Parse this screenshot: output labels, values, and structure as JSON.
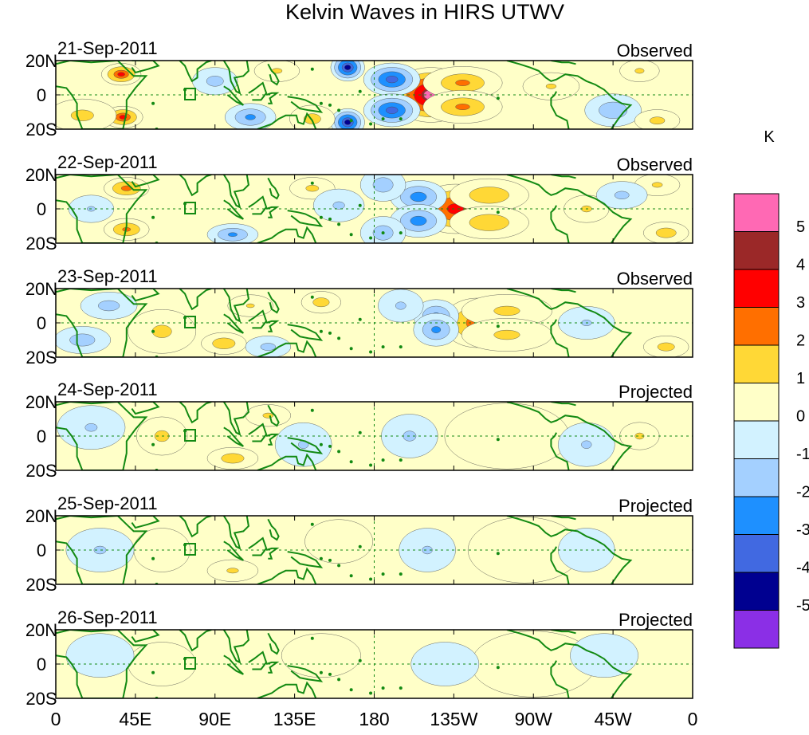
{
  "chart_data": {
    "type": "heatmap",
    "title": "Kelvin Waves in HIRS UTWV",
    "colorbar": {
      "unit": "K",
      "ticks": [
        "5",
        "4",
        "3",
        "2",
        "1",
        "0",
        "-1",
        "-2",
        "-3",
        "-4",
        "-5"
      ],
      "colors_top_to_bottom": [
        "#ff69b4",
        "#9b2828",
        "#ff0000",
        "#ff6f00",
        "#ffd836",
        "#ffffc8",
        "#d2f2ff",
        "#a4d0ff",
        "#1e90ff",
        "#4169e1",
        "#000090",
        "#8b2fe6"
      ]
    },
    "x_ticks": [
      "0",
      "45E",
      "90E",
      "135E",
      "180",
      "135W",
      "90W",
      "45W",
      "0"
    ],
    "x_tick_lon": [
      0,
      45,
      90,
      135,
      180,
      225,
      270,
      315,
      360
    ],
    "y_ticks": [
      "20N",
      "0",
      "20S"
    ],
    "y_tick_lat": [
      20,
      0,
      -20
    ],
    "xlim": [
      0,
      360
    ],
    "ylim": [
      -20,
      20
    ],
    "panels": [
      {
        "date": "21-Sep-2011",
        "label": "Observed",
        "blobs": [
          {
            "lon": 212,
            "lat": 0,
            "v": 5.2,
            "sx": 14,
            "sy": 10
          },
          {
            "lon": 230,
            "lat": 7,
            "v": 2.2,
            "sx": 14,
            "sy": 6
          },
          {
            "lon": 230,
            "lat": -7,
            "v": 2.2,
            "sx": 14,
            "sy": 6
          },
          {
            "lon": 190,
            "lat": 9,
            "v": -3.8,
            "sx": 10,
            "sy": 6
          },
          {
            "lon": 190,
            "lat": -9,
            "v": -3.8,
            "sx": 10,
            "sy": 6
          },
          {
            "lon": 165,
            "lat": 16,
            "v": -4.5,
            "sx": 6,
            "sy": 5
          },
          {
            "lon": 165,
            "lat": -16,
            "v": -4.5,
            "sx": 6,
            "sy": 5
          },
          {
            "lon": 37,
            "lat": 12,
            "v": 3.2,
            "sx": 7,
            "sy": 4
          },
          {
            "lon": 38,
            "lat": -13,
            "v": 3.2,
            "sx": 7,
            "sy": 4
          },
          {
            "lon": 15,
            "lat": -12,
            "v": 1.5,
            "sx": 12,
            "sy": 6
          },
          {
            "lon": 110,
            "lat": -13,
            "v": -2.5,
            "sx": 9,
            "sy": 5
          },
          {
            "lon": 90,
            "lat": 8,
            "v": -1.6,
            "sx": 8,
            "sy": 5
          },
          {
            "lon": 145,
            "lat": -14,
            "v": 1.6,
            "sx": 8,
            "sy": 5
          },
          {
            "lon": 125,
            "lat": 14,
            "v": 1.3,
            "sx": 8,
            "sy": 4
          },
          {
            "lon": 315,
            "lat": -9,
            "v": -2.0,
            "sx": 10,
            "sy": 6
          },
          {
            "lon": 340,
            "lat": -15,
            "v": 1.5,
            "sx": 8,
            "sy": 4
          },
          {
            "lon": 330,
            "lat": 14,
            "v": 1.3,
            "sx": 7,
            "sy": 4
          },
          {
            "lon": 280,
            "lat": 5,
            "v": 1.1,
            "sx": 10,
            "sy": 5
          }
        ]
      },
      {
        "date": "22-Sep-2011",
        "label": "Observed",
        "blobs": [
          {
            "lon": 226,
            "lat": 0,
            "v": 3.8,
            "sx": 14,
            "sy": 9
          },
          {
            "lon": 245,
            "lat": 8,
            "v": 2.0,
            "sx": 14,
            "sy": 6
          },
          {
            "lon": 245,
            "lat": -8,
            "v": 2.0,
            "sx": 14,
            "sy": 6
          },
          {
            "lon": 205,
            "lat": 7,
            "v": -2.8,
            "sx": 10,
            "sy": 6
          },
          {
            "lon": 205,
            "lat": -7,
            "v": -2.8,
            "sx": 10,
            "sy": 6
          },
          {
            "lon": 185,
            "lat": 14,
            "v": -1.8,
            "sx": 8,
            "sy": 6
          },
          {
            "lon": 185,
            "lat": -14,
            "v": -1.8,
            "sx": 8,
            "sy": 6
          },
          {
            "lon": 40,
            "lat": 12,
            "v": 2.6,
            "sx": 8,
            "sy": 4
          },
          {
            "lon": 40,
            "lat": -12,
            "v": 2.4,
            "sx": 8,
            "sy": 4
          },
          {
            "lon": 100,
            "lat": -15,
            "v": -2.4,
            "sx": 9,
            "sy": 4
          },
          {
            "lon": 145,
            "lat": 12,
            "v": 1.4,
            "sx": 8,
            "sy": 4
          },
          {
            "lon": 160,
            "lat": 2,
            "v": -1.3,
            "sx": 9,
            "sy": 6
          },
          {
            "lon": 20,
            "lat": 0,
            "v": -1.1,
            "sx": 8,
            "sy": 5
          },
          {
            "lon": 300,
            "lat": 0,
            "v": 1.3,
            "sx": 8,
            "sy": 5
          },
          {
            "lon": 345,
            "lat": -14,
            "v": 1.8,
            "sx": 8,
            "sy": 4
          },
          {
            "lon": 340,
            "lat": 14,
            "v": 1.3,
            "sx": 8,
            "sy": 4
          },
          {
            "lon": 320,
            "lat": 8,
            "v": -1.4,
            "sx": 9,
            "sy": 5
          }
        ]
      },
      {
        "date": "23-Sep-2011",
        "label": "Observed",
        "blobs": [
          {
            "lon": 238,
            "lat": 0,
            "v": 2.9,
            "sx": 12,
            "sy": 9
          },
          {
            "lon": 255,
            "lat": 7,
            "v": 1.4,
            "sx": 16,
            "sy": 6
          },
          {
            "lon": 255,
            "lat": -7,
            "v": 1.4,
            "sx": 16,
            "sy": 6
          },
          {
            "lon": 215,
            "lat": 4,
            "v": -2.5,
            "sx": 8,
            "sy": 6
          },
          {
            "lon": 215,
            "lat": -4,
            "v": -2.5,
            "sx": 8,
            "sy": 6
          },
          {
            "lon": 195,
            "lat": 10,
            "v": -1.3,
            "sx": 8,
            "sy": 6
          },
          {
            "lon": 60,
            "lat": -5,
            "v": 1.4,
            "sx": 12,
            "sy": 8
          },
          {
            "lon": 95,
            "lat": -12,
            "v": 2.0,
            "sx": 8,
            "sy": 4
          },
          {
            "lon": 150,
            "lat": 12,
            "v": 1.7,
            "sx": 7,
            "sy": 4
          },
          {
            "lon": 30,
            "lat": 10,
            "v": -1.6,
            "sx": 10,
            "sy": 5
          },
          {
            "lon": 15,
            "lat": -10,
            "v": -1.8,
            "sx": 10,
            "sy": 5
          },
          {
            "lon": 110,
            "lat": 10,
            "v": 1.2,
            "sx": 8,
            "sy": 4
          },
          {
            "lon": 120,
            "lat": -14,
            "v": -1.5,
            "sx": 8,
            "sy": 4
          },
          {
            "lon": 300,
            "lat": 0,
            "v": -1.2,
            "sx": 10,
            "sy": 6
          },
          {
            "lon": 345,
            "lat": -14,
            "v": 1.6,
            "sx": 8,
            "sy": 4
          }
        ]
      },
      {
        "date": "24-Sep-2011",
        "label": "Projected",
        "blobs": [
          {
            "lon": 248,
            "lat": 0,
            "v": 2.3,
            "sx": 11,
            "sy": 8
          },
          {
            "lon": 255,
            "lat": 0,
            "v": 0.8,
            "sx": 22,
            "sy": 12
          },
          {
            "lon": 200,
            "lat": 0,
            "v": -1.3,
            "sx": 10,
            "sy": 8
          },
          {
            "lon": 60,
            "lat": 0,
            "v": 1.4,
            "sx": 9,
            "sy": 7
          },
          {
            "lon": 100,
            "lat": -13,
            "v": 1.8,
            "sx": 9,
            "sy": 4
          },
          {
            "lon": 120,
            "lat": 12,
            "v": 1.3,
            "sx": 8,
            "sy": 4
          },
          {
            "lon": 20,
            "lat": 5,
            "v": -1.2,
            "sx": 12,
            "sy": 8
          },
          {
            "lon": 140,
            "lat": -5,
            "v": -1.1,
            "sx": 10,
            "sy": 8
          },
          {
            "lon": 300,
            "lat": -5,
            "v": -1.1,
            "sx": 10,
            "sy": 8
          },
          {
            "lon": 330,
            "lat": 0,
            "v": 1.3,
            "sx": 7,
            "sy": 5
          }
        ]
      },
      {
        "date": "25-Sep-2011",
        "label": "Projected",
        "blobs": [
          {
            "lon": 255,
            "lat": 0,
            "v": 1.3,
            "sx": 8,
            "sy": 6
          },
          {
            "lon": 265,
            "lat": 0,
            "v": 0.7,
            "sx": 20,
            "sy": 12
          },
          {
            "lon": 210,
            "lat": 0,
            "v": -1.2,
            "sx": 10,
            "sy": 8
          },
          {
            "lon": 100,
            "lat": -12,
            "v": 1.3,
            "sx": 9,
            "sy": 4
          },
          {
            "lon": 60,
            "lat": 0,
            "v": 0.8,
            "sx": 10,
            "sy": 8
          },
          {
            "lon": 25,
            "lat": 0,
            "v": -1.1,
            "sx": 12,
            "sy": 8
          },
          {
            "lon": 160,
            "lat": 5,
            "v": 0.7,
            "sx": 12,
            "sy": 8
          },
          {
            "lon": 300,
            "lat": 0,
            "v": -1.0,
            "sx": 10,
            "sy": 8
          }
        ]
      },
      {
        "date": "26-Sep-2011",
        "label": "Projected",
        "blobs": [
          {
            "lon": 262,
            "lat": 0,
            "v": 1.2,
            "sx": 4,
            "sy": 3
          },
          {
            "lon": 270,
            "lat": 0,
            "v": 0.6,
            "sx": 22,
            "sy": 12
          },
          {
            "lon": 220,
            "lat": 0,
            "v": -1.0,
            "sx": 12,
            "sy": 8
          },
          {
            "lon": 60,
            "lat": 0,
            "v": 0.6,
            "sx": 12,
            "sy": 8
          },
          {
            "lon": 25,
            "lat": 5,
            "v": -1.0,
            "sx": 12,
            "sy": 8
          },
          {
            "lon": 150,
            "lat": 5,
            "v": 0.6,
            "sx": 14,
            "sy": 8
          },
          {
            "lon": 310,
            "lat": 5,
            "v": -0.9,
            "sx": 12,
            "sy": 8
          }
        ]
      }
    ]
  }
}
